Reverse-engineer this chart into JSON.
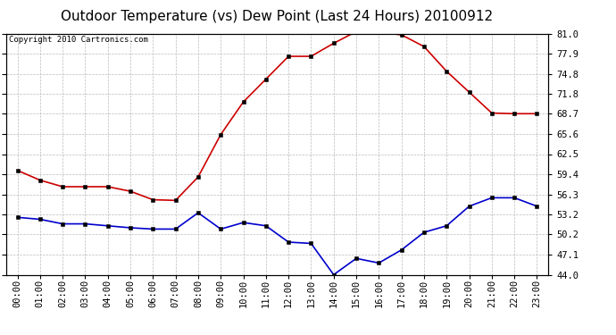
{
  "title": "Outdoor Temperature (vs) Dew Point (Last 24 Hours) 20100912",
  "copyright_text": "Copyright 2010 Cartronics.com",
  "x_labels": [
    "00:00",
    "01:00",
    "02:00",
    "03:00",
    "04:00",
    "05:00",
    "06:00",
    "07:00",
    "08:00",
    "09:00",
    "10:00",
    "11:00",
    "12:00",
    "13:00",
    "14:00",
    "15:00",
    "16:00",
    "17:00",
    "18:00",
    "19:00",
    "20:00",
    "21:00",
    "22:00",
    "23:00"
  ],
  "temp_red": [
    60.0,
    58.5,
    57.5,
    57.5,
    57.5,
    56.8,
    55.5,
    55.4,
    59.0,
    65.5,
    70.5,
    74.0,
    77.5,
    77.5,
    79.5,
    81.3,
    81.2,
    80.8,
    79.0,
    75.2,
    72.0,
    68.8,
    68.7,
    68.7
  ],
  "dew_blue": [
    52.8,
    52.5,
    51.8,
    51.8,
    51.5,
    51.2,
    51.0,
    51.0,
    53.5,
    51.0,
    52.0,
    51.5,
    49.0,
    48.8,
    44.0,
    46.5,
    45.8,
    47.8,
    50.5,
    51.5,
    54.5,
    55.8,
    55.8,
    54.5
  ],
  "ylim": [
    44.0,
    81.0
  ],
  "yticks": [
    44.0,
    47.1,
    50.2,
    53.2,
    56.3,
    59.4,
    62.5,
    65.6,
    68.7,
    71.8,
    74.8,
    77.9,
    81.0
  ],
  "bg_color": "#ffffff",
  "grid_color": "#bbbbbb",
  "red_color": "#cc0000",
  "blue_color": "#0000cc",
  "title_fontsize": 11,
  "tick_fontsize": 7.5,
  "copyright_fontsize": 6.5
}
